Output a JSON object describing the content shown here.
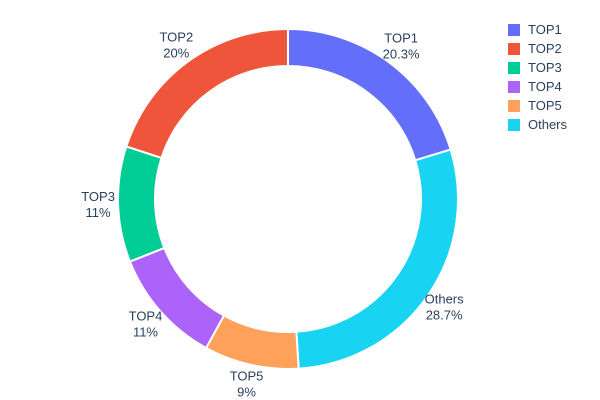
{
  "chart_data": {
    "type": "pie",
    "subtype": "donut",
    "hole": 0.78,
    "direction": "clockwise",
    "start_angle_deg": 0,
    "title": "",
    "background": "#ffffff",
    "text_color": "#2a3f5f",
    "categories": [
      "TOP1",
      "TOP2",
      "TOP3",
      "TOP4",
      "TOP5",
      "Others"
    ],
    "values": [
      20.3,
      20,
      11,
      11,
      9,
      28.7
    ],
    "percent_labels": [
      "20.3%",
      "20%",
      "11%",
      "11%",
      "9%",
      "28.7%"
    ],
    "colors": [
      "#636efa",
      "#ef553b",
      "#00cc96",
      "#ab63fa",
      "#ffa15a",
      "#19d3f3"
    ],
    "slices_clockwise_from_top": [
      {
        "label": "TOP1",
        "value": 20.3,
        "text": "20.3%",
        "color": "#636efa"
      },
      {
        "label": "Others",
        "value": 28.7,
        "text": "28.7%",
        "color": "#19d3f3"
      },
      {
        "label": "TOP5",
        "value": 9,
        "text": "9%",
        "color": "#ffa15a"
      },
      {
        "label": "TOP4",
        "value": 11,
        "text": "11%",
        "color": "#ab63fa"
      },
      {
        "label": "TOP3",
        "value": 11,
        "text": "11%",
        "color": "#00cc96"
      },
      {
        "label": "TOP2",
        "value": 20,
        "text": "20%",
        "color": "#ef553b"
      }
    ],
    "legend": {
      "position": "right",
      "entries": [
        "TOP1",
        "TOP2",
        "TOP3",
        "TOP4",
        "TOP5",
        "Others"
      ]
    }
  }
}
